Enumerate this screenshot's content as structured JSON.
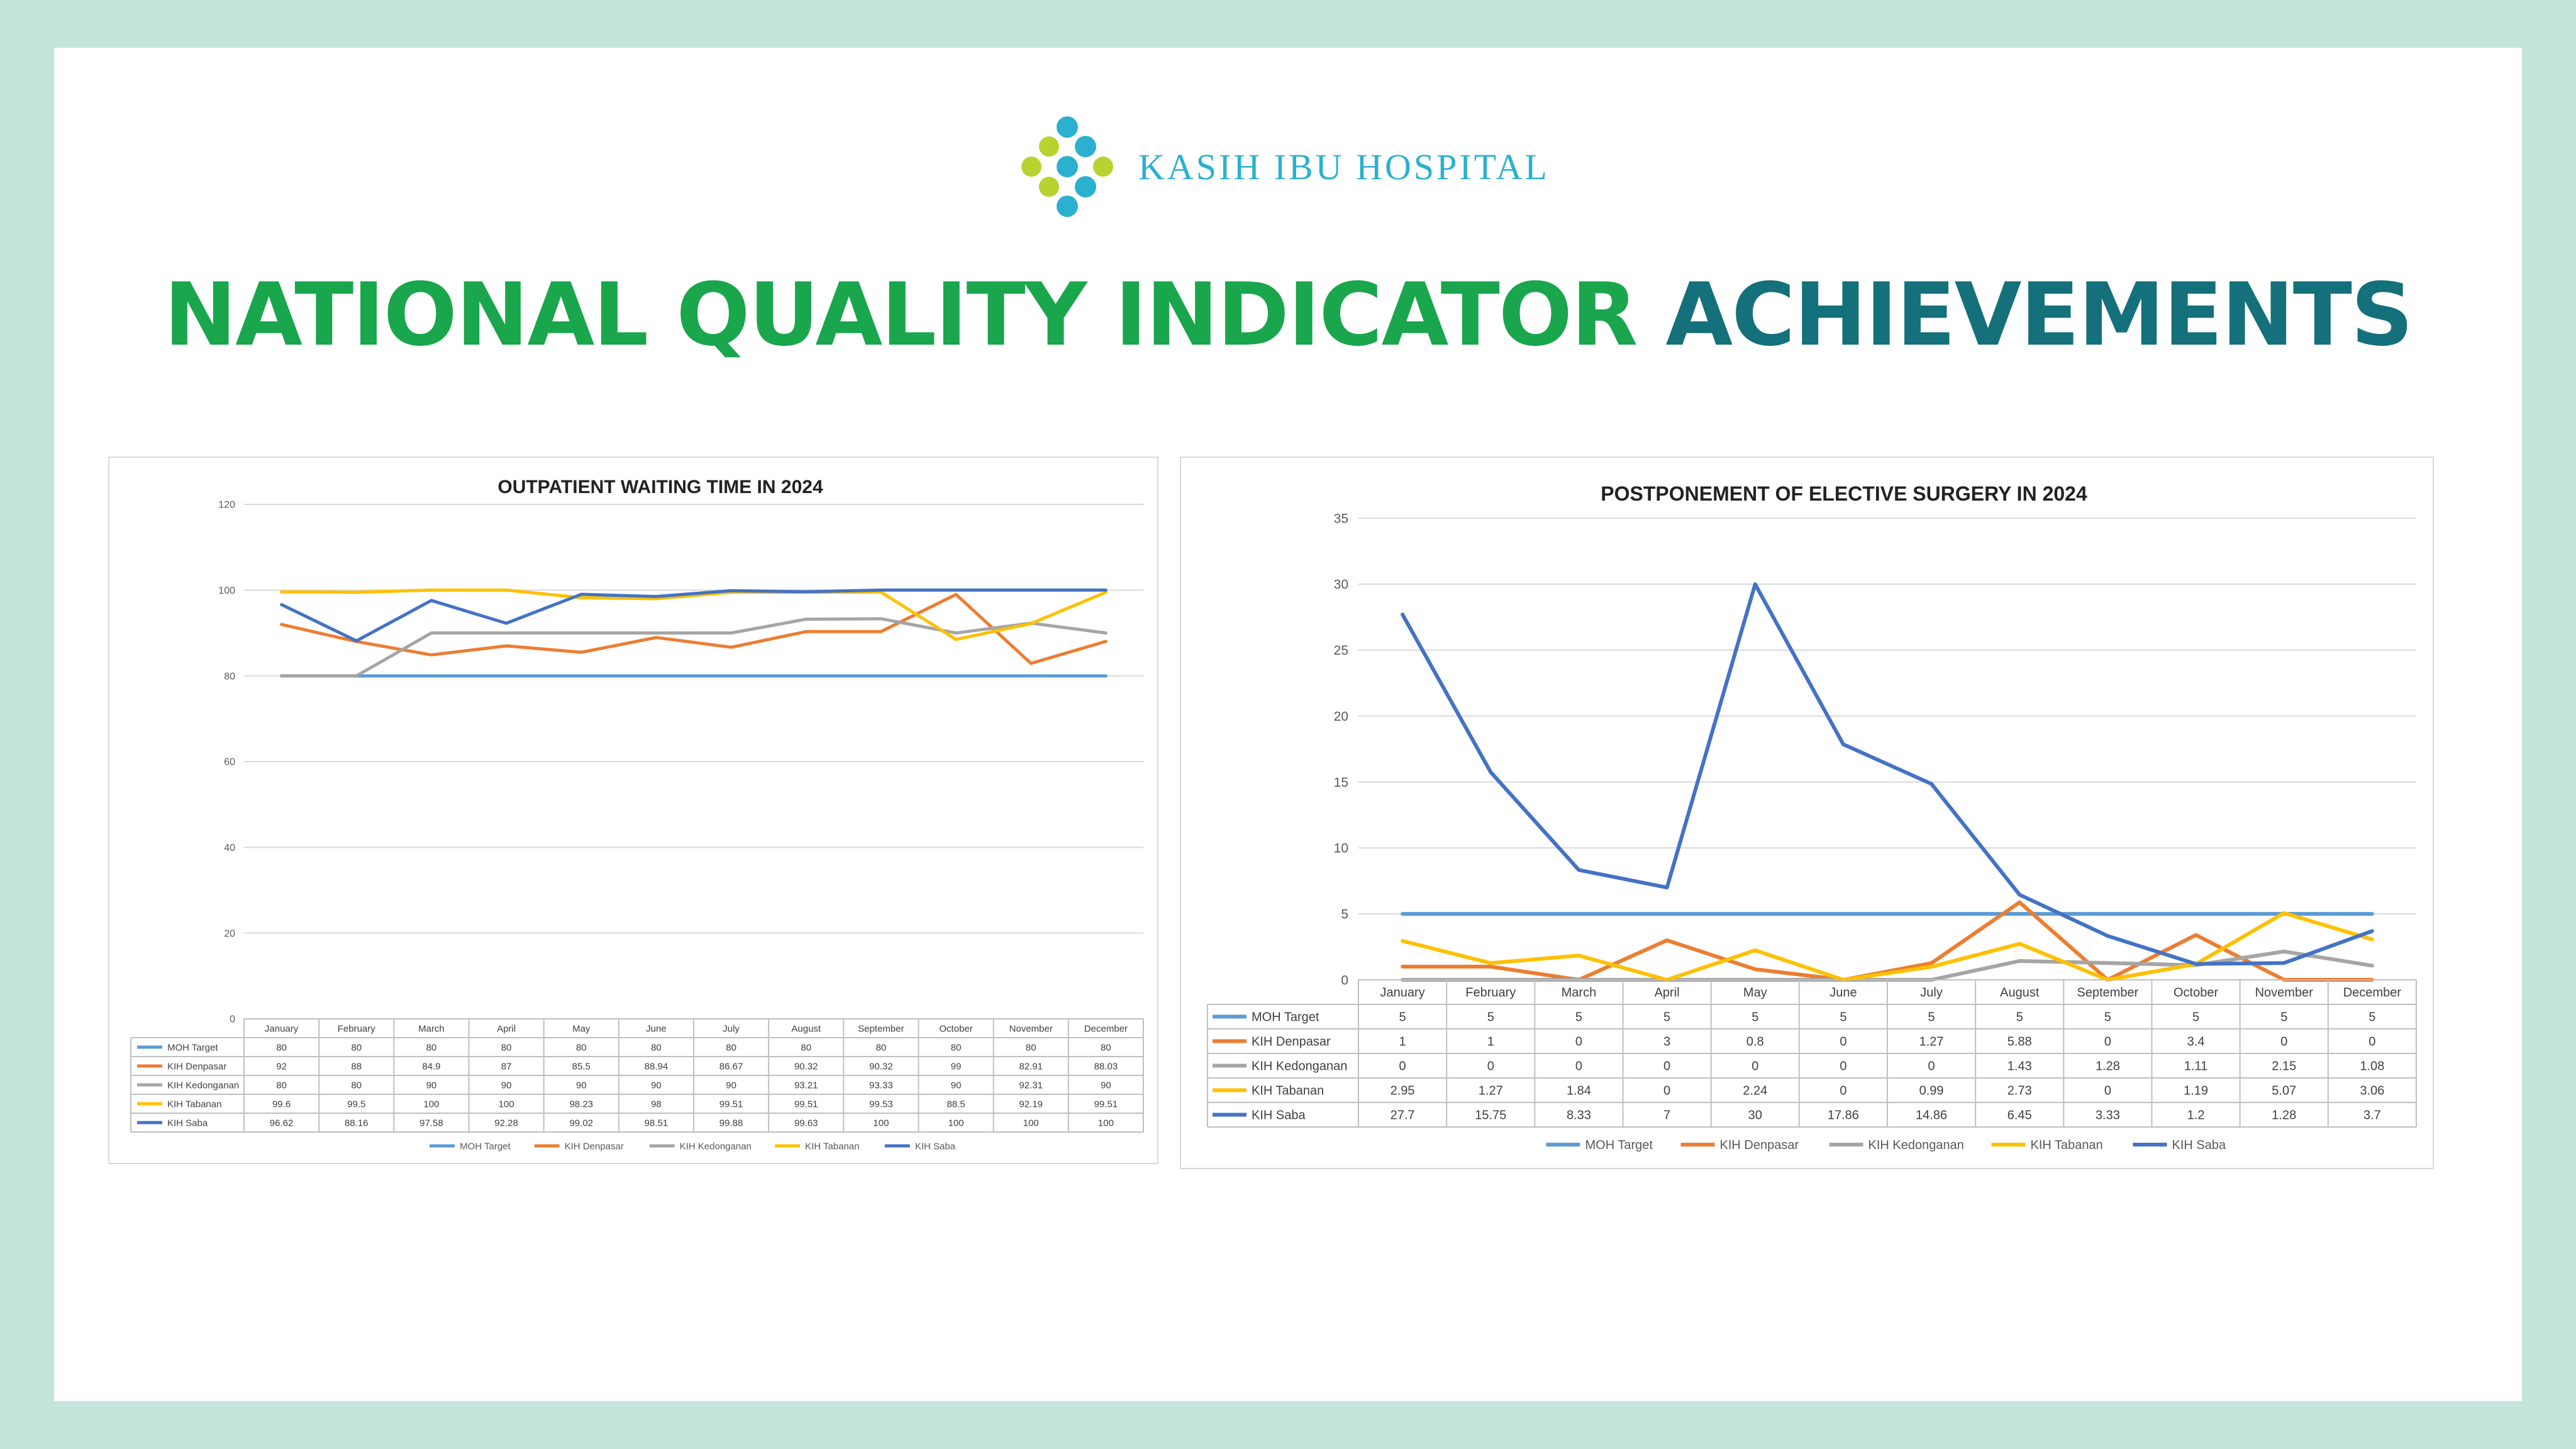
{
  "brand": {
    "name": "KASIH IBU HOSPITAL",
    "icon": "molecule-logo-icon",
    "colors": {
      "blue": "#2bb0d0",
      "green": "#b8d230"
    }
  },
  "headline": {
    "part1": "NATIONAL QUALITY INDICATOR",
    "part2": "ACHIEVEMENTS",
    "color1": "#19a64c",
    "color2": "#14707a"
  },
  "chart_data": [
    {
      "type": "line",
      "title": "OUTPATIENT WAITING TIME IN 2024",
      "ylim": [
        0,
        120
      ],
      "yticks": [
        0,
        20,
        40,
        60,
        80,
        100,
        120
      ],
      "grid": true,
      "legend": "bottom",
      "categories": [
        "January",
        "February",
        "March",
        "April",
        "May",
        "June",
        "July",
        "August",
        "September",
        "October",
        "November",
        "December"
      ],
      "series": [
        {
          "name": "MOH Target",
          "color": "#5b9bd5",
          "values": [
            "80",
            "80",
            "80",
            "80",
            "80",
            "80",
            "80",
            "80",
            "80",
            "80",
            "80",
            "80"
          ]
        },
        {
          "name": "KIH Denpasar",
          "color": "#ed7d31",
          "values": [
            "92",
            "88",
            "84.9",
            "87",
            "85.5",
            "88.94",
            "86.67",
            "90.32",
            "90.32",
            "99",
            "82.91",
            "88.03"
          ]
        },
        {
          "name": "KIH Kedonganan",
          "color": "#a5a5a5",
          "values": [
            "80",
            "80",
            "90",
            "90",
            "90",
            "90",
            "90",
            "93.21",
            "93.33",
            "90",
            "92.31",
            "90"
          ]
        },
        {
          "name": "KIH Tabanan",
          "color": "#ffc000",
          "values": [
            "99.6",
            "99.5",
            "100",
            "100",
            "98.23",
            "98",
            "99.51",
            "99.51",
            "99.53",
            "88.5",
            "92.19",
            "99.51"
          ]
        },
        {
          "name": "KIH Saba",
          "color": "#4472c4",
          "values": [
            "96.62",
            "88.16",
            "97.58",
            "92.28",
            "99.02",
            "98.51",
            "99.88",
            "99.63",
            "100",
            "100",
            "100",
            "100"
          ]
        }
      ]
    },
    {
      "type": "line",
      "title": "POSTPONEMENT OF ELECTIVE SURGERY IN 2024",
      "ylim": [
        0,
        35
      ],
      "yticks": [
        0,
        5,
        10,
        15,
        20,
        25,
        30,
        35
      ],
      "grid": true,
      "legend": "bottom",
      "categories": [
        "January",
        "February",
        "March",
        "April",
        "May",
        "June",
        "July",
        "August",
        "September",
        "October",
        "November",
        "December"
      ],
      "series": [
        {
          "name": "MOH Target",
          "color": "#5b9bd5",
          "values": [
            "5",
            "5",
            "5",
            "5",
            "5",
            "5",
            "5",
            "5",
            "5",
            "5",
            "5",
            "5"
          ]
        },
        {
          "name": "KIH Denpasar",
          "color": "#ed7d31",
          "values": [
            "1",
            "1",
            "0",
            "3",
            "0.8",
            "0",
            "1.27",
            "5.88",
            "0",
            "3.4",
            "0",
            "0"
          ]
        },
        {
          "name": "KIH Kedonganan",
          "color": "#a5a5a5",
          "values": [
            "0",
            "0",
            "0",
            "0",
            "0",
            "0",
            "0",
            "1.43",
            "1.28",
            "1.11",
            "2.15",
            "1.08"
          ]
        },
        {
          "name": "KIH Tabanan",
          "color": "#ffc000",
          "values": [
            "2.95",
            "1.27",
            "1.84",
            "0",
            "2.24",
            "0",
            "0.99",
            "2.73",
            "0",
            "1.19",
            "5.07",
            "3.06"
          ]
        },
        {
          "name": "KIH Saba",
          "color": "#4472c4",
          "values": [
            "27.7",
            "15.75",
            "8.33",
            "7",
            "30",
            "17.86",
            "14.86",
            "6.45",
            "3.33",
            "1.2",
            "1.28",
            "3.7"
          ]
        }
      ]
    }
  ]
}
